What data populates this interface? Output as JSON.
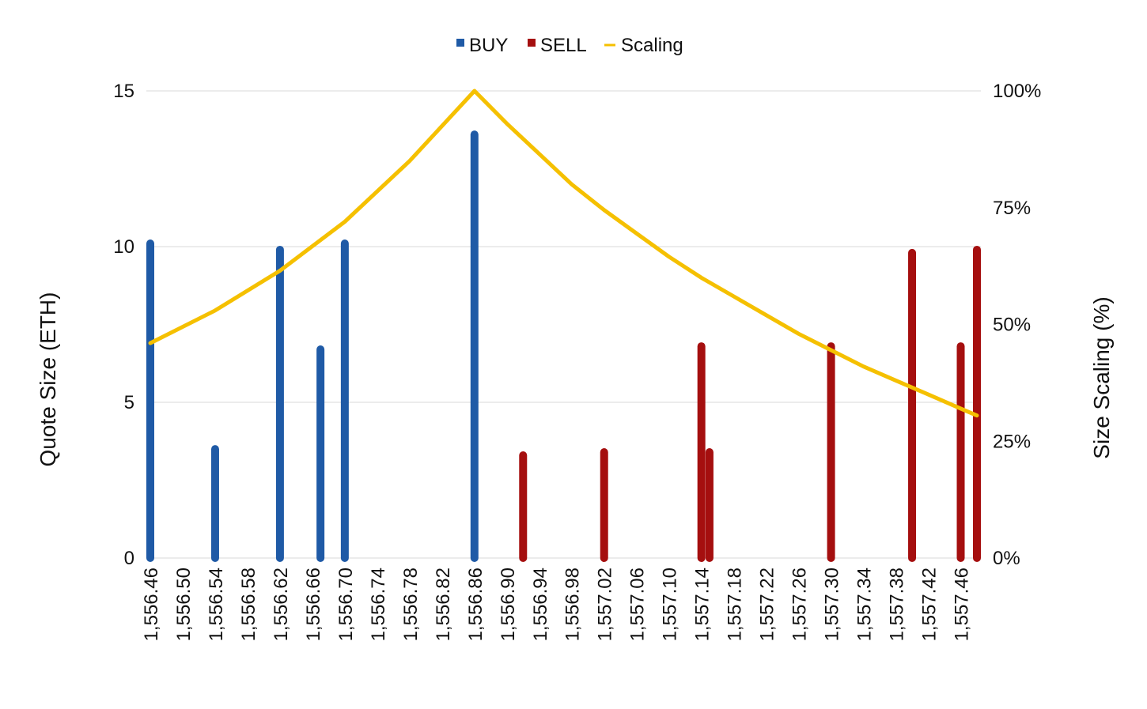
{
  "chart_data": {
    "type": "bar",
    "title": "",
    "ylabel": "Quote Size (ETH)",
    "y2label": "Size Scaling (%)",
    "ylim": [
      0,
      15
    ],
    "y2lim": [
      0,
      100
    ],
    "yticks": [
      "0",
      "5",
      "10",
      "15"
    ],
    "y2ticks": [
      "0%",
      "25%",
      "50%",
      "75%",
      "100%"
    ],
    "grid": true,
    "legend_position": "top-center",
    "legend": [
      {
        "label": "BUY",
        "symbol": "square"
      },
      {
        "label": "SELL",
        "symbol": "square"
      },
      {
        "label": "Scaling",
        "symbol": "line"
      }
    ],
    "xlim": [
      1556.46,
      1557.48
    ],
    "x_tick_labels": [
      "1,556.46",
      "1,556.50",
      "1,556.54",
      "1,556.58",
      "1,556.62",
      "1,556.66",
      "1,556.70",
      "1,556.74",
      "1,556.78",
      "1,556.82",
      "1,556.86",
      "1,556.90",
      "1,556.94",
      "1,556.98",
      "1,557.02",
      "1,557.06",
      "1,557.10",
      "1,557.14",
      "1,557.18",
      "1,557.22",
      "1,557.26",
      "1,557.30",
      "1,557.34",
      "1,557.38",
      "1,557.42",
      "1,557.46"
    ],
    "x_tick_values": [
      1556.46,
      1556.5,
      1556.54,
      1556.58,
      1556.62,
      1556.66,
      1556.7,
      1556.74,
      1556.78,
      1556.82,
      1556.86,
      1556.9,
      1556.94,
      1556.98,
      1557.02,
      1557.06,
      1557.1,
      1557.14,
      1557.18,
      1557.22,
      1557.26,
      1557.3,
      1557.34,
      1557.38,
      1557.42,
      1557.46
    ],
    "series": [
      {
        "name": "BUY",
        "color": "#1f5aa6",
        "points": [
          {
            "x": 1556.46,
            "y": 10.1
          },
          {
            "x": 1556.54,
            "y": 3.5
          },
          {
            "x": 1556.62,
            "y": 9.9
          },
          {
            "x": 1556.67,
            "y": 6.7
          },
          {
            "x": 1556.7,
            "y": 10.1
          },
          {
            "x": 1556.86,
            "y": 13.6
          }
        ]
      },
      {
        "name": "SELL",
        "color": "#a50f0f",
        "points": [
          {
            "x": 1556.92,
            "y": 3.3
          },
          {
            "x": 1557.02,
            "y": 3.4
          },
          {
            "x": 1557.14,
            "y": 6.8
          },
          {
            "x": 1557.15,
            "y": 3.4
          },
          {
            "x": 1557.3,
            "y": 6.8
          },
          {
            "x": 1557.4,
            "y": 9.8
          },
          {
            "x": 1557.46,
            "y": 6.8
          },
          {
            "x": 1557.48,
            "y": 9.9
          }
        ]
      },
      {
        "name": "Scaling",
        "color": "#f5c000",
        "type": "line",
        "points": [
          {
            "x": 1556.46,
            "y": 46
          },
          {
            "x": 1556.54,
            "y": 53
          },
          {
            "x": 1556.62,
            "y": 61.5
          },
          {
            "x": 1556.7,
            "y": 72
          },
          {
            "x": 1556.78,
            "y": 85
          },
          {
            "x": 1556.86,
            "y": 100
          },
          {
            "x": 1556.9,
            "y": 93
          },
          {
            "x": 1556.94,
            "y": 86.5
          },
          {
            "x": 1556.98,
            "y": 80
          },
          {
            "x": 1557.02,
            "y": 74.5
          },
          {
            "x": 1557.06,
            "y": 69.5
          },
          {
            "x": 1557.1,
            "y": 64.5
          },
          {
            "x": 1557.14,
            "y": 60
          },
          {
            "x": 1557.18,
            "y": 56
          },
          {
            "x": 1557.22,
            "y": 52
          },
          {
            "x": 1557.26,
            "y": 48
          },
          {
            "x": 1557.3,
            "y": 44.5
          },
          {
            "x": 1557.34,
            "y": 41
          },
          {
            "x": 1557.38,
            "y": 38
          },
          {
            "x": 1557.42,
            "y": 35
          },
          {
            "x": 1557.46,
            "y": 32
          },
          {
            "x": 1557.48,
            "y": 30.5
          }
        ]
      }
    ]
  }
}
